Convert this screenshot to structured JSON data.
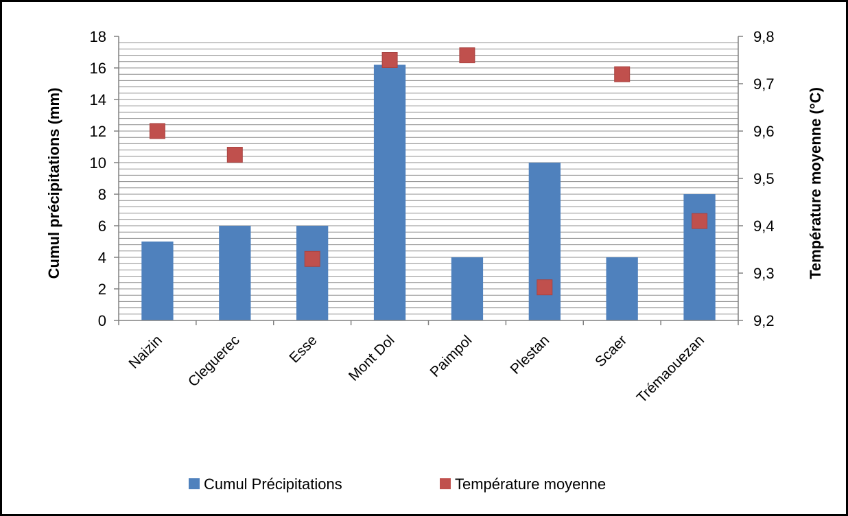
{
  "chart_data": {
    "type": "bar",
    "categories": [
      "Naizin",
      "Cleguerec",
      "Esse",
      "Mont Dol",
      "Paimpol",
      "Plestan",
      "Scaer",
      "Trémaouezan"
    ],
    "series": [
      {
        "name": "Cumul Précipitations",
        "type": "bar",
        "axis": "left",
        "color": "#4f81bd",
        "values": [
          5,
          6,
          6,
          16.2,
          4,
          10,
          4,
          8
        ]
      },
      {
        "name": "Température moyenne",
        "type": "scatter",
        "axis": "right",
        "color": "#c0504d",
        "values": [
          9.6,
          9.55,
          9.33,
          9.75,
          9.76,
          9.27,
          9.72,
          9.41
        ]
      }
    ],
    "ylabel": "Cumul précipitations  (mm)",
    "y2label": "Température moyenne (°C)",
    "ylim": [
      0,
      18
    ],
    "yticks": [
      "0",
      "2",
      "4",
      "6",
      "8",
      "10",
      "12",
      "14",
      "16",
      "18"
    ],
    "y2lim": [
      9.2,
      9.8
    ],
    "y2ticks": [
      "9,2",
      "9,3",
      "9,4",
      "9,5",
      "9,6",
      "9,7",
      "9,8"
    ],
    "grid": true,
    "legend_position": "bottom"
  }
}
